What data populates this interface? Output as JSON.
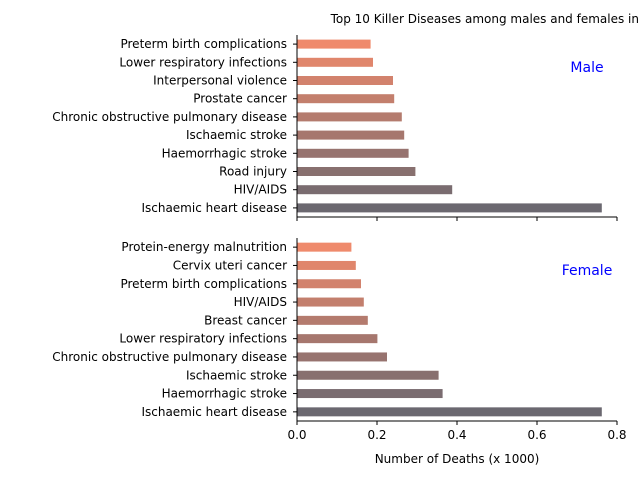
{
  "chart_data": {
    "type": "bar",
    "orientation": "horizontal",
    "title": "Top 10 Killer Diseases among males and females in",
    "xlabel": "Number of Deaths (x 1000)",
    "xlim": [
      0,
      0.8
    ],
    "xticks": [
      "0.0",
      "0.2",
      "0.4",
      "0.6",
      "0.8"
    ],
    "grid": false,
    "colors": {
      "start": "#ef8a6c",
      "end": "#6b6870",
      "panel_label": "#0000ff"
    },
    "panels": [
      {
        "label": "Male",
        "categories": [
          "Preterm birth complications",
          "Lower respiratory infections",
          "Interpersonal violence",
          "Prostate cancer",
          "Chronic obstructive pulmonary disease",
          "Ischaemic stroke",
          "Haemorrhagic stroke",
          "Road injury",
          "HIV/AIDS",
          "Ischaemic heart disease"
        ],
        "values": [
          0.184,
          0.19,
          0.24,
          0.243,
          0.262,
          0.268,
          0.279,
          0.296,
          0.388,
          0.762
        ]
      },
      {
        "label": "Female",
        "categories": [
          "Protein-energy malnutrition",
          "Cervix uteri cancer",
          "Preterm birth complications",
          "HIV/AIDS",
          "Breast cancer",
          "Lower respiratory infections",
          "Chronic obstructive pulmonary disease",
          "Ischaemic stroke",
          "Haemorrhagic stroke",
          "Ischaemic heart disease"
        ],
        "values": [
          0.136,
          0.147,
          0.16,
          0.167,
          0.177,
          0.201,
          0.225,
          0.354,
          0.364,
          0.762
        ]
      }
    ]
  }
}
